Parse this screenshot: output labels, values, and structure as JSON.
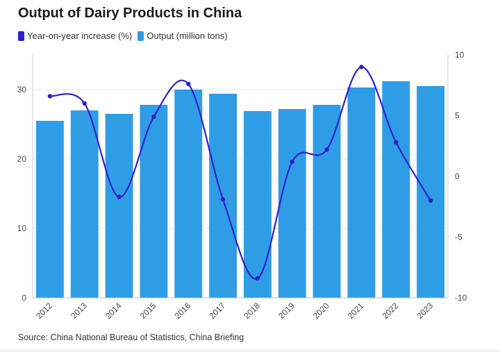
{
  "chart_data": {
    "type": "bar",
    "title": "Output of Dairy Products in China",
    "categories": [
      "2012",
      "2013",
      "2014",
      "2015",
      "2016",
      "2017",
      "2018",
      "2019",
      "2020",
      "2021",
      "2022",
      "2023"
    ],
    "series": [
      {
        "name": "Output (million tons)",
        "type": "bar",
        "axis": "left",
        "color": "#2e9de6",
        "values": [
          25.5,
          27.0,
          26.5,
          27.8,
          30.0,
          29.4,
          26.9,
          27.2,
          27.8,
          30.3,
          31.2,
          30.5
        ]
      },
      {
        "name": "Year-on-year increase (%)",
        "type": "line",
        "axis": "right",
        "color": "#2e1fcf",
        "values": [
          6.6,
          6.0,
          -1.7,
          4.9,
          7.6,
          -1.9,
          -8.4,
          1.2,
          2.2,
          9.0,
          2.8,
          -2.0
        ]
      }
    ],
    "y_left": {
      "min": 0,
      "max": 35,
      "ticks": [
        0,
        10,
        20,
        30
      ]
    },
    "y_right": {
      "min": -10,
      "max": 10,
      "ticks": [
        -10,
        -5,
        0,
        5,
        10
      ],
      "tick_labels": [
        "-10",
        "-5",
        "0",
        "5",
        "10"
      ]
    },
    "legend": {
      "position": "top-left",
      "order": [
        "Year-on-year increase (%)",
        "Output (million tons)"
      ]
    },
    "grid": true,
    "source": "Source: China National Bureau of Statistics, China Briefing"
  }
}
